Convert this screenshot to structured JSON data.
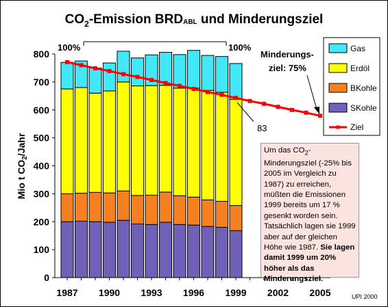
{
  "chart_data": {
    "type": "bar",
    "stacked": true,
    "title_main": "CO",
    "title_sub2": "2",
    "title_rest": "-Emission BRD",
    "title_sub_abl": "ABL",
    "title_end": " und Minderungsziel",
    "ylabel_pre": "Mio t CO",
    "ylabel_sub": "2",
    "ylabel_post": "/Jahr",
    "ylim": [
      0,
      800
    ],
    "yticks": [
      "0",
      "100",
      "200",
      "300",
      "400",
      "500",
      "600",
      "700",
      "800"
    ],
    "xticks": [
      "1987",
      "1990",
      "1993",
      "1996",
      "1999",
      "2002",
      "2005"
    ],
    "grid": false,
    "legend_position": "right",
    "categories": [
      "1987",
      "1988",
      "1989",
      "1990",
      "1991",
      "1992",
      "1993",
      "1994",
      "1995",
      "1996",
      "1997",
      "1998",
      "1999"
    ],
    "series": [
      {
        "name": "SKohle",
        "color": "#7060b8",
        "values": [
          200,
          202,
          200,
          198,
          205,
          192,
          190,
          198,
          190,
          188,
          183,
          180,
          168
        ]
      },
      {
        "name": "BKohle",
        "color": "#f58020",
        "values": [
          100,
          100,
          105,
          105,
          105,
          102,
          105,
          108,
          103,
          100,
          95,
          93,
          90
        ]
      },
      {
        "name": "Erdöl",
        "color": "#ffff00",
        "values": [
          375,
          378,
          355,
          365,
          390,
          392,
          392,
          382,
          385,
          390,
          392,
          390,
          380
        ]
      },
      {
        "name": "Gas",
        "color": "#40e8f8",
        "values": [
          95,
          95,
          90,
          100,
          110,
          100,
          110,
          118,
          120,
          135,
          125,
          128,
          128
        ]
      }
    ],
    "target_line": {
      "name": "Ziel",
      "color": "#ff0000",
      "x": [
        "1987",
        "1988",
        "1989",
        "1990",
        "1991",
        "1992",
        "1993",
        "1994",
        "1995",
        "1996",
        "1997",
        "1998",
        "1999",
        "2000",
        "2001",
        "2002",
        "2003",
        "2004",
        "2005"
      ],
      "values": [
        771,
        760,
        749,
        739,
        728,
        718,
        707,
        696,
        686,
        675,
        664,
        654,
        643,
        632,
        622,
        611,
        600,
        590,
        579
      ]
    },
    "annotations": {
      "start_pct": "100%",
      "end_pct": "100%",
      "reduction_label_1": "Minderungs-",
      "reduction_label_2": "ziel: 75%",
      "value_83": "83",
      "source": "UPI 2000"
    },
    "note": {
      "p1": "Um das CO",
      "p1_sub": "2",
      "p2": "-Minderungsziel (-25% bis 2005 im Vergleich zu 1987) zu erreichen, müßten die Emissionen 1999 bereits um 17 % gesenkt worden sein. Tatsächlich lagen sie 1999 aber auf der gleichen Höhe wie 1987.",
      "bold": "Sie lagen damit 1999 um 20% höher als das Minderungsziel."
    }
  }
}
